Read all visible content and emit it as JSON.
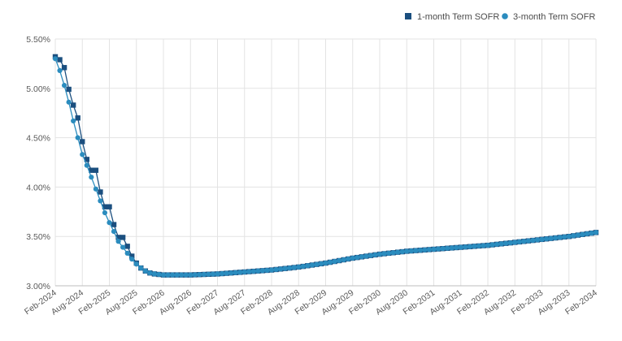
{
  "chart_data": {
    "type": "line",
    "title": "",
    "xlabel": "",
    "ylabel": "",
    "ylim": [
      3.0,
      5.5
    ],
    "yticks": [
      "3.00%",
      "3.50%",
      "4.00%",
      "4.50%",
      "5.00%",
      "5.50%"
    ],
    "ytick_values": [
      3.0,
      3.5,
      4.0,
      4.5,
      5.0,
      5.5
    ],
    "xlim_months": [
      "2024-02",
      "2034-02"
    ],
    "xticks": [
      "Feb-2024",
      "Aug-2024",
      "Feb-2025",
      "Aug-2025",
      "Feb-2026",
      "Aug-2026",
      "Feb-2027",
      "Aug-2027",
      "Feb-2028",
      "Aug-2028",
      "Feb-2029",
      "Aug-2029",
      "Feb-2030",
      "Aug-2030",
      "Feb-2031",
      "Aug-2031",
      "Feb-2032",
      "Aug-2032",
      "Feb-2033",
      "Aug-2033",
      "Feb-2034"
    ],
    "grid": true,
    "legend_position": "top-right",
    "series": [
      {
        "name": "1-month Term SOFR",
        "marker": "square",
        "color": "#1b4f7f",
        "x": [
          "2024-02",
          "2024-03",
          "2024-04",
          "2024-05",
          "2024-06",
          "2024-07",
          "2024-08",
          "2024-09",
          "2024-10",
          "2024-11",
          "2024-12",
          "2025-01",
          "2025-02",
          "2025-03",
          "2025-04",
          "2025-05",
          "2025-06",
          "2025-07",
          "2025-08",
          "2025-09",
          "2025-10",
          "2025-11",
          "2025-12",
          "2026-02",
          "2026-08",
          "2027-02",
          "2027-08",
          "2028-02",
          "2028-08",
          "2029-02",
          "2029-08",
          "2030-02",
          "2030-08",
          "2031-02",
          "2031-08",
          "2032-02",
          "2032-08",
          "2033-02",
          "2033-08",
          "2034-02"
        ],
        "values": [
          5.32,
          5.29,
          5.21,
          4.99,
          4.83,
          4.7,
          4.46,
          4.28,
          4.17,
          4.17,
          3.95,
          3.8,
          3.8,
          3.62,
          3.49,
          3.49,
          3.4,
          3.3,
          3.23,
          3.18,
          3.15,
          3.13,
          3.12,
          3.11,
          3.11,
          3.12,
          3.14,
          3.16,
          3.19,
          3.23,
          3.28,
          3.32,
          3.35,
          3.37,
          3.39,
          3.41,
          3.44,
          3.47,
          3.5,
          3.54
        ]
      },
      {
        "name": "3-month Term SOFR",
        "marker": "circle",
        "color": "#2b8cbe",
        "x": [
          "2024-02",
          "2024-03",
          "2024-04",
          "2024-05",
          "2024-06",
          "2024-07",
          "2024-08",
          "2024-09",
          "2024-10",
          "2024-11",
          "2024-12",
          "2025-01",
          "2025-02",
          "2025-03",
          "2025-04",
          "2025-05",
          "2025-06",
          "2025-07",
          "2025-08",
          "2025-09",
          "2025-10",
          "2025-11",
          "2025-12",
          "2026-02",
          "2026-08",
          "2027-02",
          "2027-08",
          "2028-02",
          "2028-08",
          "2029-02",
          "2029-08",
          "2030-02",
          "2030-08",
          "2031-02",
          "2031-08",
          "2032-02",
          "2032-08",
          "2033-02",
          "2033-08",
          "2034-02"
        ],
        "values": [
          5.3,
          5.18,
          5.03,
          4.86,
          4.67,
          4.5,
          4.33,
          4.22,
          4.1,
          3.98,
          3.86,
          3.74,
          3.64,
          3.55,
          3.45,
          3.39,
          3.33,
          3.27,
          3.22,
          3.18,
          3.15,
          3.13,
          3.12,
          3.11,
          3.11,
          3.12,
          3.14,
          3.16,
          3.19,
          3.23,
          3.28,
          3.32,
          3.35,
          3.37,
          3.39,
          3.41,
          3.44,
          3.47,
          3.5,
          3.54
        ]
      }
    ]
  }
}
